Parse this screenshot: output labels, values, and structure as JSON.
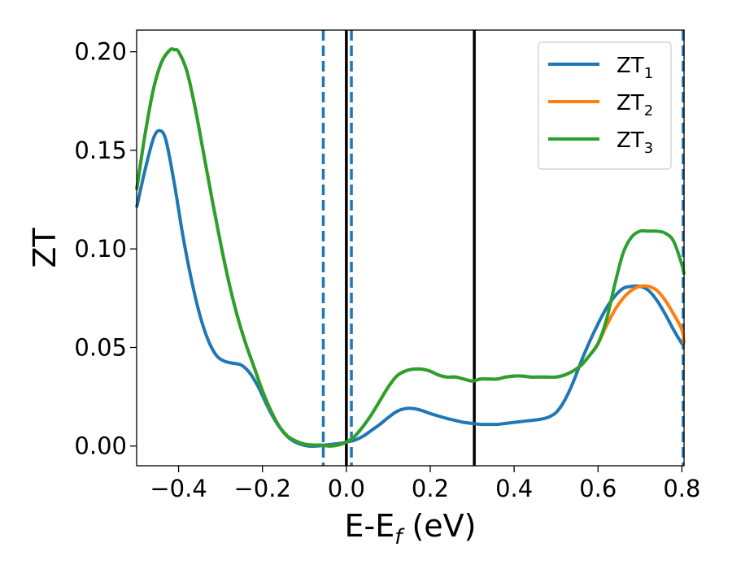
{
  "chart_data": {
    "type": "line",
    "title": "",
    "xlabel": "E-E",
    "xlabel_sub": "f",
    "xlabel_unit": " (eV)",
    "ylabel": "ZT",
    "xlim": [
      -0.5,
      0.805
    ],
    "ylim": [
      -0.01,
      0.211
    ],
    "x_ticks": [
      -0.4,
      -0.2,
      0.0,
      0.2,
      0.4,
      0.6,
      0.8
    ],
    "x_tick_labels": [
      "−0.4",
      "−0.2",
      "0.0",
      "0.2",
      "0.4",
      "0.6",
      "0.8"
    ],
    "y_ticks": [
      0.0,
      0.05,
      0.1,
      0.15,
      0.2
    ],
    "y_tick_labels": [
      "0.00",
      "0.05",
      "0.10",
      "0.15",
      "0.20"
    ],
    "legend_position": "top-right",
    "series": [
      {
        "name": "ZT",
        "name_sub": "1",
        "color": "#1f77b4",
        "x": [
          -0.5,
          -0.48,
          -0.46,
          -0.445,
          -0.43,
          -0.41,
          -0.39,
          -0.37,
          -0.35,
          -0.33,
          -0.31,
          -0.29,
          -0.27,
          -0.25,
          -0.23,
          -0.21,
          -0.19,
          -0.17,
          -0.15,
          -0.13,
          -0.11,
          -0.09,
          -0.07,
          -0.05,
          -0.03,
          -0.01,
          0.0,
          0.02,
          0.04,
          0.06,
          0.08,
          0.1,
          0.12,
          0.14,
          0.16,
          0.18,
          0.2,
          0.22,
          0.24,
          0.26,
          0.28,
          0.3,
          0.32,
          0.34,
          0.36,
          0.38,
          0.4,
          0.42,
          0.44,
          0.46,
          0.48,
          0.5,
          0.52,
          0.54,
          0.56,
          0.58,
          0.6,
          0.62,
          0.64,
          0.66,
          0.68,
          0.7,
          0.72,
          0.74,
          0.76,
          0.78,
          0.8,
          0.805
        ],
        "y": [
          0.121,
          0.14,
          0.156,
          0.16,
          0.155,
          0.133,
          0.107,
          0.085,
          0.067,
          0.054,
          0.046,
          0.043,
          0.042,
          0.041,
          0.037,
          0.03,
          0.021,
          0.013,
          0.007,
          0.003,
          0.001,
          0.0,
          0.0,
          0.0005,
          0.001,
          0.0015,
          0.002,
          0.003,
          0.005,
          0.008,
          0.011,
          0.0145,
          0.0175,
          0.019,
          0.019,
          0.018,
          0.0165,
          0.0152,
          0.014,
          0.013,
          0.012,
          0.0115,
          0.011,
          0.011,
          0.011,
          0.0115,
          0.012,
          0.0125,
          0.013,
          0.0135,
          0.0145,
          0.017,
          0.023,
          0.032,
          0.043,
          0.053,
          0.062,
          0.07,
          0.076,
          0.08,
          0.081,
          0.081,
          0.079,
          0.074,
          0.067,
          0.059,
          0.052,
          0.051
        ]
      },
      {
        "name": "ZT",
        "name_sub": "2",
        "color": "#ff7f0e",
        "x": [
          -0.5,
          -0.48,
          -0.46,
          -0.44,
          -0.42,
          -0.41,
          -0.4,
          -0.38,
          -0.36,
          -0.34,
          -0.32,
          -0.3,
          -0.28,
          -0.26,
          -0.24,
          -0.22,
          -0.2,
          -0.18,
          -0.16,
          -0.14,
          -0.12,
          -0.1,
          -0.08,
          -0.06,
          -0.04,
          -0.02,
          0.0,
          0.02,
          0.04,
          0.06,
          0.08,
          0.1,
          0.12,
          0.14,
          0.16,
          0.18,
          0.2,
          0.22,
          0.24,
          0.26,
          0.28,
          0.3,
          0.32,
          0.34,
          0.36,
          0.38,
          0.4,
          0.42,
          0.44,
          0.46,
          0.48,
          0.5,
          0.52,
          0.54,
          0.56,
          0.58,
          0.6,
          0.62,
          0.64,
          0.66,
          0.68,
          0.7,
          0.72,
          0.74,
          0.76,
          0.78,
          0.8,
          0.805
        ],
        "y": [
          0.13,
          0.158,
          0.181,
          0.195,
          0.201,
          0.201,
          0.2,
          0.19,
          0.171,
          0.148,
          0.125,
          0.103,
          0.083,
          0.066,
          0.052,
          0.04,
          0.028,
          0.018,
          0.01,
          0.005,
          0.0025,
          0.001,
          0.0005,
          0.0005,
          0.0,
          0.0005,
          0.002,
          0.005,
          0.01,
          0.016,
          0.023,
          0.03,
          0.0355,
          0.038,
          0.039,
          0.039,
          0.038,
          0.036,
          0.035,
          0.035,
          0.034,
          0.033,
          0.034,
          0.034,
          0.034,
          0.035,
          0.0355,
          0.0355,
          0.035,
          0.035,
          0.035,
          0.035,
          0.036,
          0.038,
          0.041,
          0.046,
          0.052,
          0.061,
          0.069,
          0.075,
          0.079,
          0.081,
          0.081,
          0.079,
          0.074,
          0.067,
          0.059,
          0.052
        ]
      },
      {
        "name": "ZT",
        "name_sub": "3",
        "color": "#2ca02c",
        "x": [
          -0.5,
          -0.48,
          -0.46,
          -0.44,
          -0.42,
          -0.41,
          -0.4,
          -0.38,
          -0.36,
          -0.34,
          -0.32,
          -0.3,
          -0.28,
          -0.26,
          -0.24,
          -0.22,
          -0.2,
          -0.18,
          -0.16,
          -0.14,
          -0.12,
          -0.1,
          -0.08,
          -0.06,
          -0.04,
          -0.02,
          0.0,
          0.02,
          0.04,
          0.06,
          0.08,
          0.1,
          0.12,
          0.14,
          0.16,
          0.18,
          0.2,
          0.22,
          0.24,
          0.26,
          0.28,
          0.3,
          0.32,
          0.34,
          0.36,
          0.38,
          0.4,
          0.42,
          0.44,
          0.46,
          0.48,
          0.5,
          0.52,
          0.54,
          0.56,
          0.58,
          0.6,
          0.62,
          0.64,
          0.66,
          0.68,
          0.7,
          0.72,
          0.74,
          0.76,
          0.78,
          0.8,
          0.805
        ],
        "y": [
          0.13,
          0.158,
          0.181,
          0.195,
          0.201,
          0.201,
          0.2,
          0.19,
          0.171,
          0.148,
          0.125,
          0.103,
          0.083,
          0.066,
          0.052,
          0.04,
          0.028,
          0.018,
          0.01,
          0.005,
          0.0025,
          0.001,
          0.0005,
          0.0005,
          0.0,
          0.0005,
          0.002,
          0.005,
          0.01,
          0.016,
          0.023,
          0.03,
          0.0355,
          0.038,
          0.039,
          0.039,
          0.038,
          0.036,
          0.035,
          0.035,
          0.034,
          0.033,
          0.034,
          0.034,
          0.034,
          0.035,
          0.0355,
          0.0355,
          0.035,
          0.035,
          0.035,
          0.035,
          0.036,
          0.038,
          0.041,
          0.046,
          0.052,
          0.064,
          0.082,
          0.098,
          0.106,
          0.109,
          0.109,
          0.109,
          0.108,
          0.104,
          0.092,
          0.087
        ]
      }
    ],
    "vlines": [
      {
        "x": -0.055,
        "style": "dashed",
        "color": "#1f77b4"
      },
      {
        "x": 0.0,
        "style": "solid",
        "color": "#000000"
      },
      {
        "x": 0.012,
        "style": "dashed",
        "color": "#1f77b4"
      },
      {
        "x": 0.305,
        "style": "solid",
        "color": "#000000"
      },
      {
        "x": 0.803,
        "style": "dashed",
        "color": "#1f77b4"
      }
    ]
  }
}
